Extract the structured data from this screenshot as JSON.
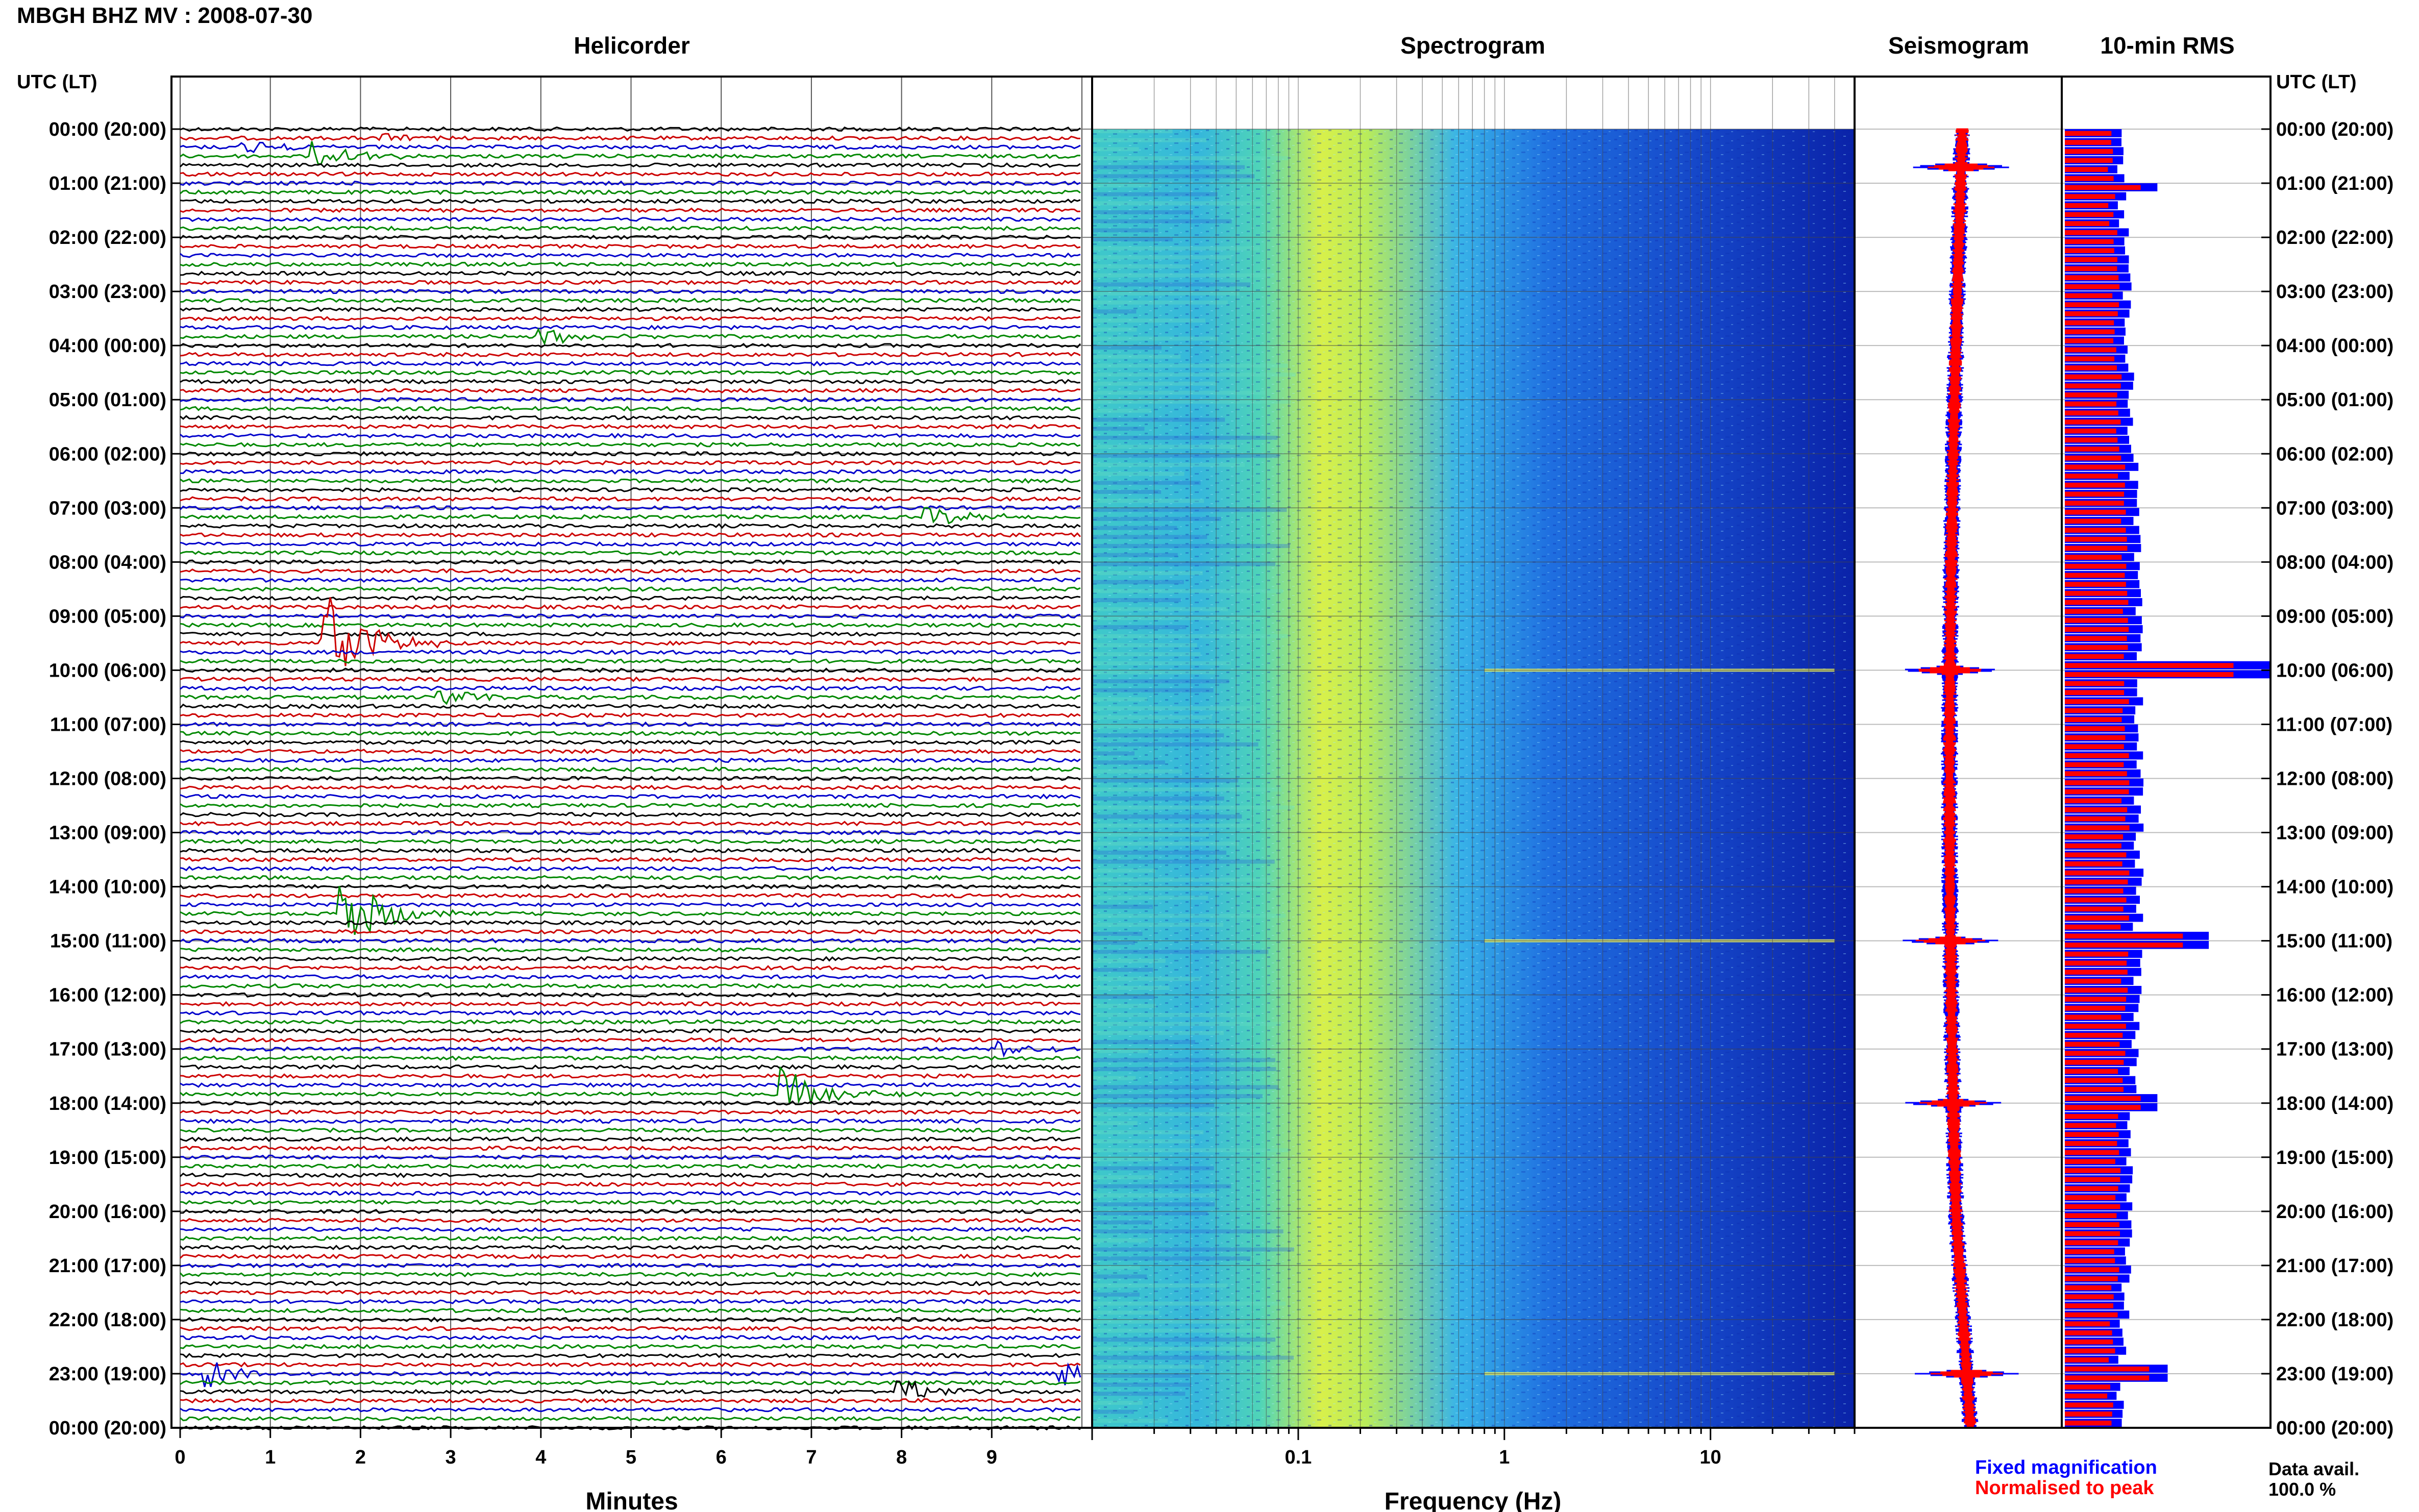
{
  "header": {
    "station_title": "MBGH BHZ MV : 2008-07-30",
    "panels": {
      "helicorder": "Helicorder",
      "spectrogram": "Spectrogram",
      "seismogram": "Seismogram",
      "rms": "10-min RMS"
    },
    "utc_header_left": "UTC (LT)",
    "utc_header_right": "UTC (LT)"
  },
  "time_labels": [
    "00:00 (20:00)",
    "01:00 (21:00)",
    "02:00 (22:00)",
    "03:00 (23:00)",
    "04:00 (00:00)",
    "05:00 (01:00)",
    "06:00 (02:00)",
    "07:00 (03:00)",
    "08:00 (04:00)",
    "09:00 (05:00)",
    "10:00 (06:00)",
    "11:00 (07:00)",
    "12:00 (08:00)",
    "13:00 (09:00)",
    "14:00 (10:00)",
    "15:00 (11:00)",
    "16:00 (12:00)",
    "17:00 (13:00)",
    "18:00 (14:00)",
    "19:00 (15:00)",
    "20:00 (16:00)",
    "21:00 (17:00)",
    "22:00 (18:00)",
    "23:00 (19:00)",
    "00:00 (20:00)"
  ],
  "footer": {
    "legend_fixed": "Fixed magnification",
    "legend_normalised": "Normalised to peak",
    "data_avail_label": "Data avail.",
    "data_avail_value": "100.0 %"
  },
  "colors": {
    "trace_cycle": [
      "#000000",
      "#cc0000",
      "#0000cc",
      "#008800"
    ],
    "rms_fixed": "#0000ff",
    "rms_normalised": "#ff0000"
  },
  "chart_data": [
    {
      "type": "line",
      "panel": "helicorder",
      "xlabel": "Minutes",
      "x_ticks": [
        "0",
        "1",
        "2",
        "3",
        "4",
        "5",
        "6",
        "7",
        "8",
        "9"
      ],
      "xlim": [
        0,
        10
      ],
      "lines_per_hour": 6,
      "hours": 24,
      "events": [
        {
          "hour": 0,
          "minute_offset": 10,
          "minute": 2.2,
          "amplitude": 0.3
        },
        {
          "hour": 0,
          "minute_offset": 20,
          "minute": 0.7,
          "amplitude": 0.4
        },
        {
          "hour": 0,
          "minute_offset": 30,
          "minute": 1.5,
          "amplitude": 0.8
        },
        {
          "hour": 3,
          "minute_offset": 50,
          "minute": 4.0,
          "amplitude": 0.5
        },
        {
          "hour": 7,
          "minute_offset": 10,
          "minute": 8.3,
          "amplitude": 0.6
        },
        {
          "hour": 9,
          "minute_offset": 30,
          "minute": 1.6,
          "amplitude": 3.5
        },
        {
          "hour": 10,
          "minute_offset": 30,
          "minute": 2.9,
          "amplitude": 0.6
        },
        {
          "hour": 14,
          "minute_offset": 30,
          "minute": 1.8,
          "amplitude": 2.5
        },
        {
          "hour": 17,
          "minute_offset": 0,
          "minute": 9.1,
          "amplitude": 0.5
        },
        {
          "hour": 17,
          "minute_offset": 50,
          "minute": 6.7,
          "amplitude": 1.5
        },
        {
          "hour": 23,
          "minute_offset": 0,
          "minute": 0.3,
          "amplitude": 0.8
        },
        {
          "hour": 23,
          "minute_offset": 0,
          "minute": 9.8,
          "amplitude": 0.8
        },
        {
          "hour": 23,
          "minute_offset": 20,
          "minute": 8.0,
          "amplitude": 0.7
        }
      ]
    },
    {
      "type": "heatmap",
      "panel": "spectrogram",
      "xlabel": "Frequency (Hz)",
      "x_scale": "log",
      "x_ticks": [
        "0.1",
        "1",
        "10"
      ],
      "xlim": [
        0.01,
        50
      ],
      "peak_band_hz": [
        0.2,
        0.5
      ],
      "bright_rows_hour": [
        10.0,
        15.0,
        23.0
      ]
    },
    {
      "type": "line",
      "panel": "seismogram",
      "spikes_hour": [
        0.7,
        10.0,
        15.0,
        18.0,
        23.0
      ]
    },
    {
      "type": "bar",
      "panel": "rms",
      "orientation": "horizontal",
      "bins_per_hour": 6,
      "series": [
        {
          "name": "Fixed magnification",
          "color": "#0000ff"
        },
        {
          "name": "Normalised to peak",
          "color": "#ff0000"
        }
      ],
      "baseline_rms": 0.28,
      "peaks": [
        {
          "hour": 1.1,
          "value": 0.45
        },
        {
          "hour": 10.0,
          "value": 1.0
        },
        {
          "hour": 15.0,
          "value": 0.7
        },
        {
          "hour": 18.0,
          "value": 0.45
        },
        {
          "hour": 23.0,
          "value": 0.5
        }
      ]
    }
  ]
}
